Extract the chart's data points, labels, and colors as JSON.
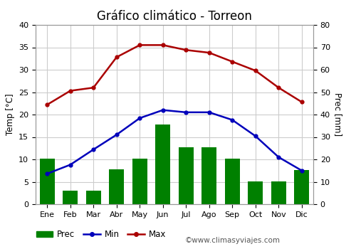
{
  "title": "Gráfico climático - Torreon",
  "months": [
    "Ene",
    "Feb",
    "Mar",
    "Abr",
    "May",
    "Jun",
    "Jul",
    "Ago",
    "Sep",
    "Oct",
    "Nov",
    "Dic"
  ],
  "prec": [
    10.2,
    3.0,
    3.0,
    7.8,
    10.2,
    17.8,
    12.7,
    12.7,
    10.2,
    5.1,
    5.1,
    7.6
  ],
  "temp_min": [
    6.8,
    8.8,
    12.2,
    15.5,
    19.2,
    21.0,
    20.5,
    20.5,
    18.8,
    15.2,
    10.5,
    7.5
  ],
  "temp_max": [
    22.2,
    25.3,
    26.0,
    32.8,
    35.5,
    35.5,
    34.4,
    33.8,
    31.8,
    29.8,
    26.0,
    22.8
  ],
  "bar_color": "#008000",
  "line_min_color": "#0000bb",
  "line_max_color": "#aa0000",
  "ylabel_left": "Temp [°C]",
  "ylabel_right": "Prec [mm]",
  "ylim_left": [
    0,
    40
  ],
  "ylim_right": [
    0,
    80
  ],
  "yticks_left": [
    0,
    5,
    10,
    15,
    20,
    25,
    30,
    35,
    40
  ],
  "yticks_right": [
    0,
    10,
    20,
    30,
    40,
    50,
    60,
    70,
    80
  ],
  "background_color": "#ffffff",
  "grid_color": "#cccccc",
  "watermark": "©www.climasyviajes.com",
  "title_fontsize": 12,
  "label_fontsize": 8.5,
  "tick_fontsize": 8,
  "legend_fontsize": 8.5
}
